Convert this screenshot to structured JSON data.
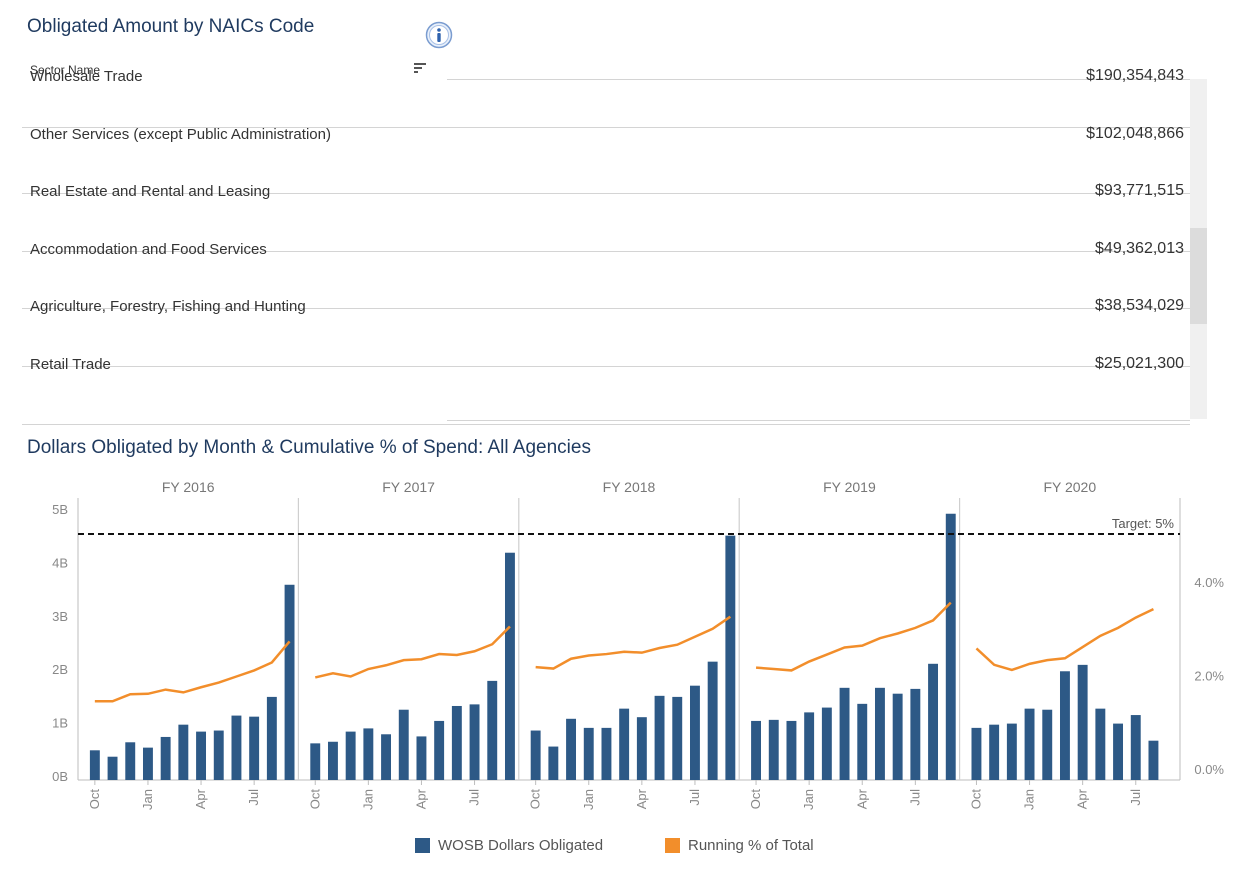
{
  "naics": {
    "title": "Obligated Amount by NAICs Code",
    "column_header": "Sector Name",
    "rows": [
      {
        "name": "Wholesale Trade",
        "amount": "$190,354,843"
      },
      {
        "name": "Other Services (except Public Administration)",
        "amount": "$102,048,866"
      },
      {
        "name": "Real Estate and Rental and Leasing",
        "amount": "$93,771,515"
      },
      {
        "name": "Accommodation and Food Services",
        "amount": "$49,362,013"
      },
      {
        "name": "Agriculture, Forestry, Fishing and Hunting",
        "amount": "$38,534,029"
      },
      {
        "name": "Retail Trade",
        "amount": "$25,021,300"
      }
    ]
  },
  "legend": {
    "bars_label": "WOSB Dollars Obligated",
    "line_label": "Running % of Total"
  },
  "colors": {
    "bar": "#2d5986",
    "line": "#f28e2b",
    "title": "#1f3a5f"
  },
  "chart_data": {
    "type": "bar",
    "title": "Dollars Obligated by Month & Cumulative % of Spend: All Agencies",
    "panels": [
      "FY 2016",
      "FY 2017",
      "FY 2018",
      "FY 2019",
      "FY 2020"
    ],
    "month_tick_labels": [
      "Oct",
      "Jan",
      "Apr",
      "Jul"
    ],
    "y_left_ticks": [
      "0B",
      "1B",
      "2B",
      "3B",
      "4B",
      "5B"
    ],
    "y_left_lim": [
      0,
      5
    ],
    "y_right_ticks": [
      "0.0%",
      "2.0%",
      "4.0%"
    ],
    "y_right_lim": [
      0,
      5.8
    ],
    "target": {
      "label": "Target: 5%",
      "value": 5
    },
    "series": [
      {
        "name": "WOSB Dollars Obligated",
        "axis": "left",
        "panels": [
          [
            0.5,
            0.38,
            0.65,
            0.55,
            0.75,
            0.98,
            0.85,
            0.87,
            1.15,
            1.13,
            1.5,
            3.6
          ],
          [
            0.63,
            0.66,
            0.85,
            0.91,
            0.8,
            1.26,
            0.76,
            1.05,
            1.33,
            1.36,
            1.8,
            4.2
          ],
          [
            0.87,
            0.57,
            1.09,
            0.92,
            0.92,
            1.28,
            1.12,
            1.52,
            1.5,
            1.71,
            2.16,
            4.52
          ],
          [
            1.05,
            1.07,
            1.05,
            1.21,
            1.3,
            1.67,
            1.37,
            1.67,
            1.56,
            1.65,
            2.12,
            4.93
          ],
          [
            0.92,
            0.98,
            1.0,
            1.28,
            1.26,
            1.98,
            2.1,
            1.28,
            1.0,
            1.16,
            0.68
          ]
        ]
      },
      {
        "name": "Running % of Total",
        "axis": "right",
        "panels": [
          [
            1.47,
            1.47,
            1.62,
            1.63,
            1.72,
            1.66,
            1.77,
            1.87,
            2.0,
            2.13,
            2.3,
            2.75
          ],
          [
            1.98,
            2.07,
            2.0,
            2.16,
            2.24,
            2.35,
            2.37,
            2.48,
            2.46,
            2.54,
            2.69,
            3.07
          ],
          [
            2.2,
            2.17,
            2.38,
            2.45,
            2.48,
            2.53,
            2.51,
            2.61,
            2.68,
            2.85,
            3.02,
            3.28
          ],
          [
            2.19,
            2.16,
            2.13,
            2.32,
            2.47,
            2.62,
            2.66,
            2.82,
            2.92,
            3.04,
            3.2,
            3.58
          ],
          [
            2.6,
            2.25,
            2.14,
            2.27,
            2.35,
            2.39,
            2.63,
            2.87,
            3.04,
            3.26,
            3.44
          ]
        ]
      }
    ]
  }
}
